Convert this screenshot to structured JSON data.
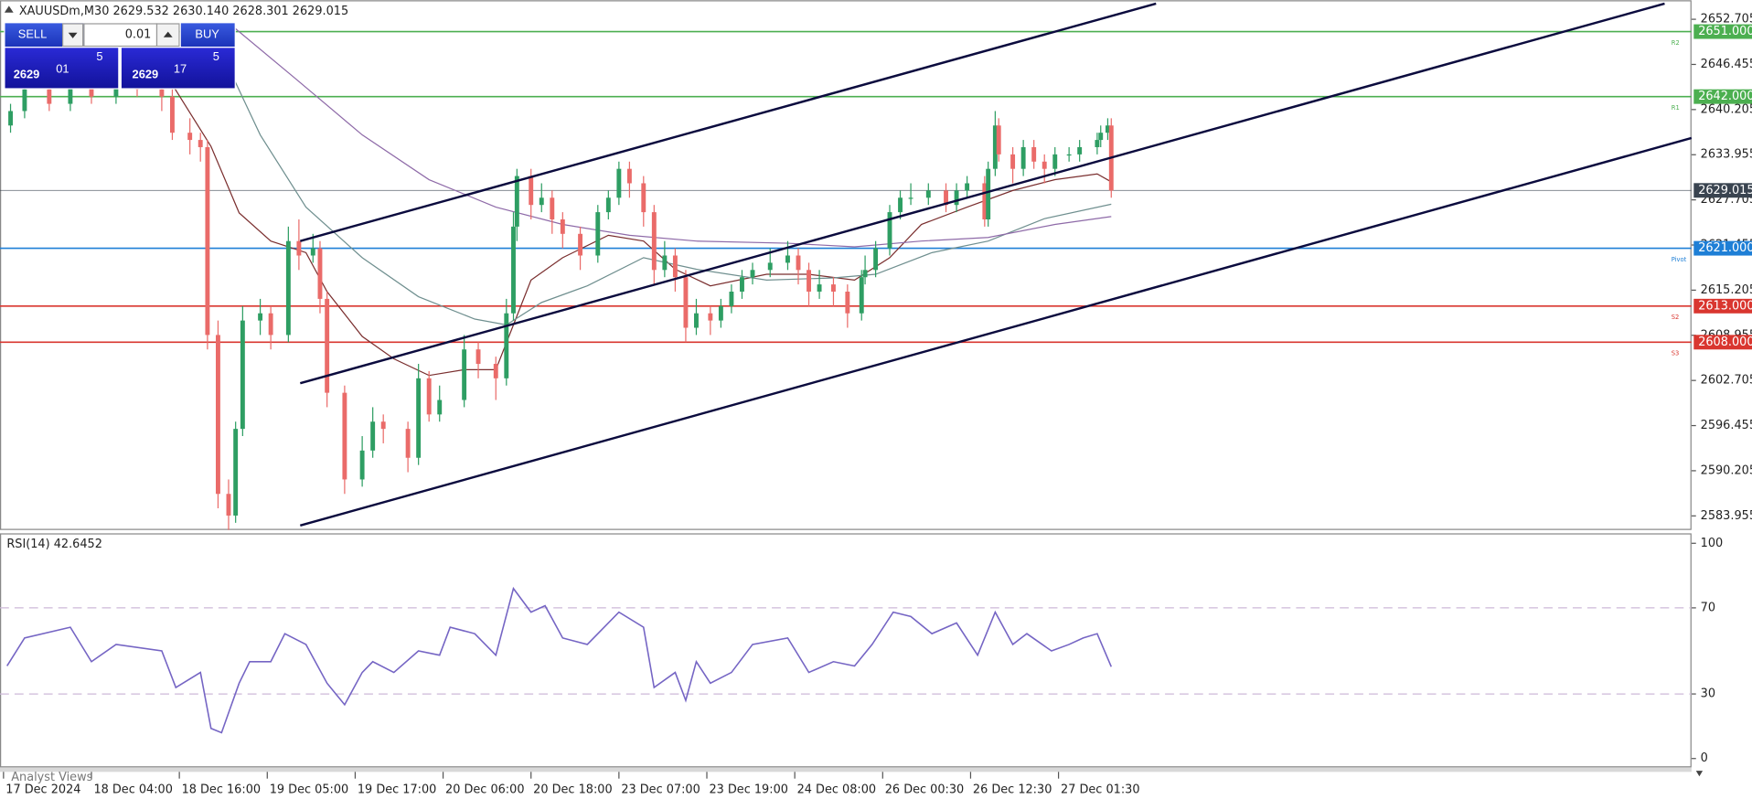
{
  "header": {
    "symbol_line": "XAUUSDm,M30  2629.532 2630.140 2628.301 2629.015",
    "sell": "SELL",
    "buy": "BUY",
    "lot": "0.01",
    "sell_price": {
      "big": "2629",
      "main": "01",
      "pip": "5"
    },
    "buy_price": {
      "big": "2629",
      "main": "17",
      "pip": "5"
    }
  },
  "chart_data": [
    {
      "type": "candlestick",
      "xlim": [
        -1,
        480
      ],
      "ylim": [
        2582.16,
        2655.34
      ],
      "yticks": [
        2583.955,
        2590.205,
        2596.455,
        2602.705,
        2608.955,
        2615.205,
        2621.455,
        2627.705,
        2633.955,
        2640.205,
        2646.455,
        2652.705
      ],
      "xticks": [
        {
          "value": 0,
          "label": "17 Dec 2024"
        },
        {
          "value": 25,
          "label": "18 Dec 04:00"
        },
        {
          "value": 50,
          "label": "18 Dec 16:00"
        },
        {
          "value": 75,
          "label": "19 Dec 05:00"
        },
        {
          "value": 100,
          "label": "19 Dec 17:00"
        },
        {
          "value": 125,
          "label": "20 Dec 06:00"
        },
        {
          "value": 150,
          "label": "20 Dec 18:00"
        },
        {
          "value": 175,
          "label": "23 Dec 07:00"
        },
        {
          "value": 200,
          "label": "23 Dec 19:00"
        },
        {
          "value": 225,
          "label": "24 Dec 08:00"
        },
        {
          "value": 250,
          "label": "26 Dec 00:30"
        },
        {
          "value": 275,
          "label": "26 Dec 12:30"
        },
        {
          "value": 300,
          "label": "27 Dec 01:30"
        }
      ],
      "candles": {
        "up_color": "#2e9e63",
        "down_color": "#ea6b69",
        "x": [
          2,
          6,
          13,
          19,
          25,
          32,
          38,
          45,
          48,
          53,
          56,
          58,
          61,
          64,
          66,
          68,
          73,
          76,
          81,
          84,
          88,
          90,
          92,
          97,
          102,
          105,
          108,
          115,
          118,
          121,
          124,
          131,
          135,
          140,
          143,
          145,
          146,
          150,
          153,
          156,
          159,
          164,
          169,
          172,
          175,
          178,
          182,
          185,
          188,
          191,
          194,
          197,
          201,
          204,
          207,
          210,
          213,
          218,
          223,
          226,
          229,
          232,
          236,
          240,
          244,
          245,
          248,
          252,
          255,
          258,
          263,
          268,
          271,
          274,
          279,
          280,
          282,
          283,
          287,
          290,
          293,
          296,
          299,
          303,
          306,
          311,
          312,
          314,
          315
        ],
        "open": [
          2638,
          2640,
          2643,
          2641,
          2644,
          2642,
          2645,
          2643,
          2642,
          2637,
          2636,
          2635,
          2609,
          2587,
          2584,
          2596,
          2611,
          2612,
          2609,
          2622,
          2620,
          2621,
          2614,
          2601,
          2589,
          2593,
          2597,
          2596,
          2592,
          2603,
          2598,
          2600,
          2607,
          2605,
          2603,
          2612,
          2624,
          2631,
          2627,
          2628,
          2625,
          2623,
          2620,
          2626,
          2628,
          2632,
          2630,
          2626,
          2618,
          2620,
          2617,
          2610,
          2612,
          2611,
          2613,
          2615,
          2617,
          2618,
          2619,
          2620,
          2618,
          2615,
          2616,
          2615,
          2612,
          2617,
          2618,
          2621,
          2626,
          2628,
          2628,
          2629,
          2627,
          2629,
          2630,
          2625,
          2632,
          2638,
          2634,
          2632,
          2635,
          2633,
          2632,
          2634,
          2634,
          2635,
          2636,
          2637,
          2638
        ],
        "high": [
          2641,
          2644,
          2644,
          2645,
          2645,
          2646,
          2646,
          2644,
          2643,
          2639,
          2637,
          2636,
          2611,
          2589,
          2597,
          2613,
          2614,
          2613,
          2624,
          2625,
          2623,
          2622,
          2615,
          2602,
          2595,
          2599,
          2598,
          2597,
          2605,
          2604,
          2602,
          2609,
          2608,
          2606,
          2614,
          2626,
          2632,
          2632,
          2630,
          2629,
          2626,
          2624,
          2627,
          2629,
          2633,
          2633,
          2631,
          2627,
          2622,
          2621,
          2618,
          2614,
          2613,
          2614,
          2616,
          2618,
          2619,
          2621,
          2622,
          2621,
          2619,
          2618,
          2617,
          2616,
          2618,
          2620,
          2622,
          2627,
          2629,
          2630,
          2630,
          2630,
          2630,
          2631,
          2631,
          2633,
          2640,
          2639,
          2635,
          2636,
          2636,
          2634,
          2635,
          2635,
          2636,
          2637,
          2638,
          2639,
          2639
        ],
        "low": [
          2637,
          2639,
          2640,
          2640,
          2641,
          2641,
          2642,
          2640,
          2636,
          2634,
          2633,
          2607,
          2585,
          2582,
          2583,
          2595,
          2609,
          2607,
          2608,
          2618,
          2619,
          2612,
          2599,
          2587,
          2588,
          2592,
          2594,
          2590,
          2591,
          2597,
          2597,
          2599,
          2603,
          2600,
          2602,
          2611,
          2622,
          2625,
          2626,
          2623,
          2621,
          2618,
          2619,
          2625,
          2627,
          2628,
          2624,
          2616,
          2617,
          2615,
          2608,
          2609,
          2609,
          2610,
          2612,
          2614,
          2616,
          2617,
          2618,
          2616,
          2613,
          2614,
          2613,
          2610,
          2611,
          2616,
          2617,
          2620,
          2625,
          2627,
          2627,
          2626,
          2626,
          2628,
          2624,
          2624,
          2631,
          2633,
          2630,
          2631,
          2632,
          2630,
          2631,
          2633,
          2633,
          2634,
          2635,
          2636,
          2628
        ],
        "close": [
          2640,
          2643,
          2641,
          2644,
          2642,
          2645,
          2643,
          2642,
          2637,
          2636,
          2635,
          2609,
          2587,
          2584,
          2596,
          2611,
          2612,
          2609,
          2622,
          2620,
          2621,
          2614,
          2601,
          2589,
          2593,
          2597,
          2596,
          2592,
          2603,
          2598,
          2600,
          2607,
          2605,
          2603,
          2612,
          2624,
          2631,
          2627,
          2628,
          2625,
          2623,
          2620,
          2626,
          2628,
          2632,
          2630,
          2626,
          2618,
          2620,
          2617,
          2610,
          2612,
          2611,
          2613,
          2615,
          2617,
          2618,
          2619,
          2620,
          2618,
          2615,
          2616,
          2615,
          2612,
          2617,
          2618,
          2621,
          2626,
          2628,
          2628,
          2629,
          2627,
          2629,
          2630,
          2625,
          2632,
          2638,
          2634,
          2632,
          2635,
          2633,
          2632,
          2634,
          2634,
          2635,
          2636,
          2637,
          2638,
          2629
        ]
      },
      "series": [
        {
          "color": "#7a2e2e",
          "x": [
            45,
            59,
            67,
            76,
            86,
            92,
            102,
            111,
            121,
            131,
            140,
            145,
            150,
            159,
            172,
            182,
            191,
            201,
            217,
            229,
            242,
            252,
            261,
            274,
            287,
            299,
            311,
            315
          ],
          "values": [
            2646.0,
            2635.1,
            2625.9,
            2622.0,
            2620.4,
            2615.0,
            2608.8,
            2605.7,
            2603.4,
            2604.2,
            2604.2,
            2610.4,
            2616.6,
            2619.7,
            2622.8,
            2622.0,
            2618.1,
            2615.8,
            2617.4,
            2617.4,
            2616.6,
            2619.7,
            2624.3,
            2626.7,
            2629.0,
            2630.5,
            2631.3,
            2630.2
          ]
        },
        {
          "color": "#6f8f8f",
          "x": [
            61,
            73,
            86,
            102,
            118,
            134,
            143,
            153,
            166,
            182,
            197,
            217,
            236,
            248,
            264,
            280,
            296,
            315
          ],
          "values": [
            2649.1,
            2636.7,
            2626.7,
            2619.7,
            2614.3,
            2611.2,
            2610.4,
            2613.5,
            2615.8,
            2619.7,
            2618.1,
            2616.6,
            2616.9,
            2617.4,
            2620.4,
            2622.0,
            2625.1,
            2627.1
          ]
        },
        {
          "color": "#8e6aa8",
          "x": [
            64,
            83,
            102,
            121,
            140,
            159,
            178,
            197,
            223,
            242,
            261,
            280,
            299,
            315
          ],
          "values": [
            2652.2,
            2644.5,
            2636.7,
            2630.5,
            2626.7,
            2624.3,
            2622.8,
            2622.0,
            2621.7,
            2621.2,
            2622.0,
            2622.5,
            2624.3,
            2625.4
          ]
        }
      ],
      "levels": [
        {
          "value": 2651,
          "label": "2651.000",
          "tag": "R2",
          "color": "#4caf50"
        },
        {
          "value": 2642,
          "label": "2642.000",
          "tag": "R1",
          "color": "#4caf50"
        },
        {
          "value": 2629.015,
          "color": "#3a4450"
        },
        {
          "value": 2621,
          "label": "2621.000",
          "tag": "Pivot",
          "color": "#1e7fd6"
        },
        {
          "value": 2613,
          "label": "2613.000",
          "tag": "S2",
          "color": "#d9362f"
        },
        {
          "value": 2608,
          "label": "2608.000",
          "tag": "S3",
          "color": "#d9362f"
        }
      ]
    },
    {
      "type": "line",
      "title": "RSI(14) 42.6452",
      "xlim": [
        -1,
        480
      ],
      "ylim": [
        -3.6,
        104.1
      ],
      "yticks": [
        0,
        30,
        70,
        100
      ],
      "levels": [
        30,
        70
      ],
      "color": "#7565c4",
      "x": [
        1,
        6,
        19,
        25,
        32,
        45,
        49,
        56,
        59,
        62,
        67,
        70,
        76,
        80,
        86,
        92,
        97,
        102,
        105,
        111,
        118,
        124,
        127,
        134,
        140,
        145,
        150,
        154,
        159,
        166,
        175,
        182,
        185,
        191,
        194,
        197,
        201,
        207,
        213,
        223,
        229,
        236,
        242,
        247,
        253,
        258,
        264,
        271,
        277,
        282,
        287,
        291,
        298,
        303,
        307,
        311,
        315
      ],
      "values": [
        43,
        56,
        61,
        45,
        53,
        50,
        33,
        40,
        14,
        12,
        35,
        45,
        45,
        58,
        53,
        35,
        25,
        40,
        45,
        40,
        50,
        48,
        61,
        58,
        48,
        79,
        68,
        71,
        56,
        53,
        68,
        61,
        33,
        40,
        27,
        45,
        35,
        40,
        53,
        56,
        40,
        45,
        43,
        53,
        68,
        66,
        58,
        63,
        48,
        68,
        53,
        58,
        50,
        53,
        56,
        58,
        42.6452
      ]
    }
  ],
  "footer": {
    "analyst_views": "Analyst Views"
  }
}
